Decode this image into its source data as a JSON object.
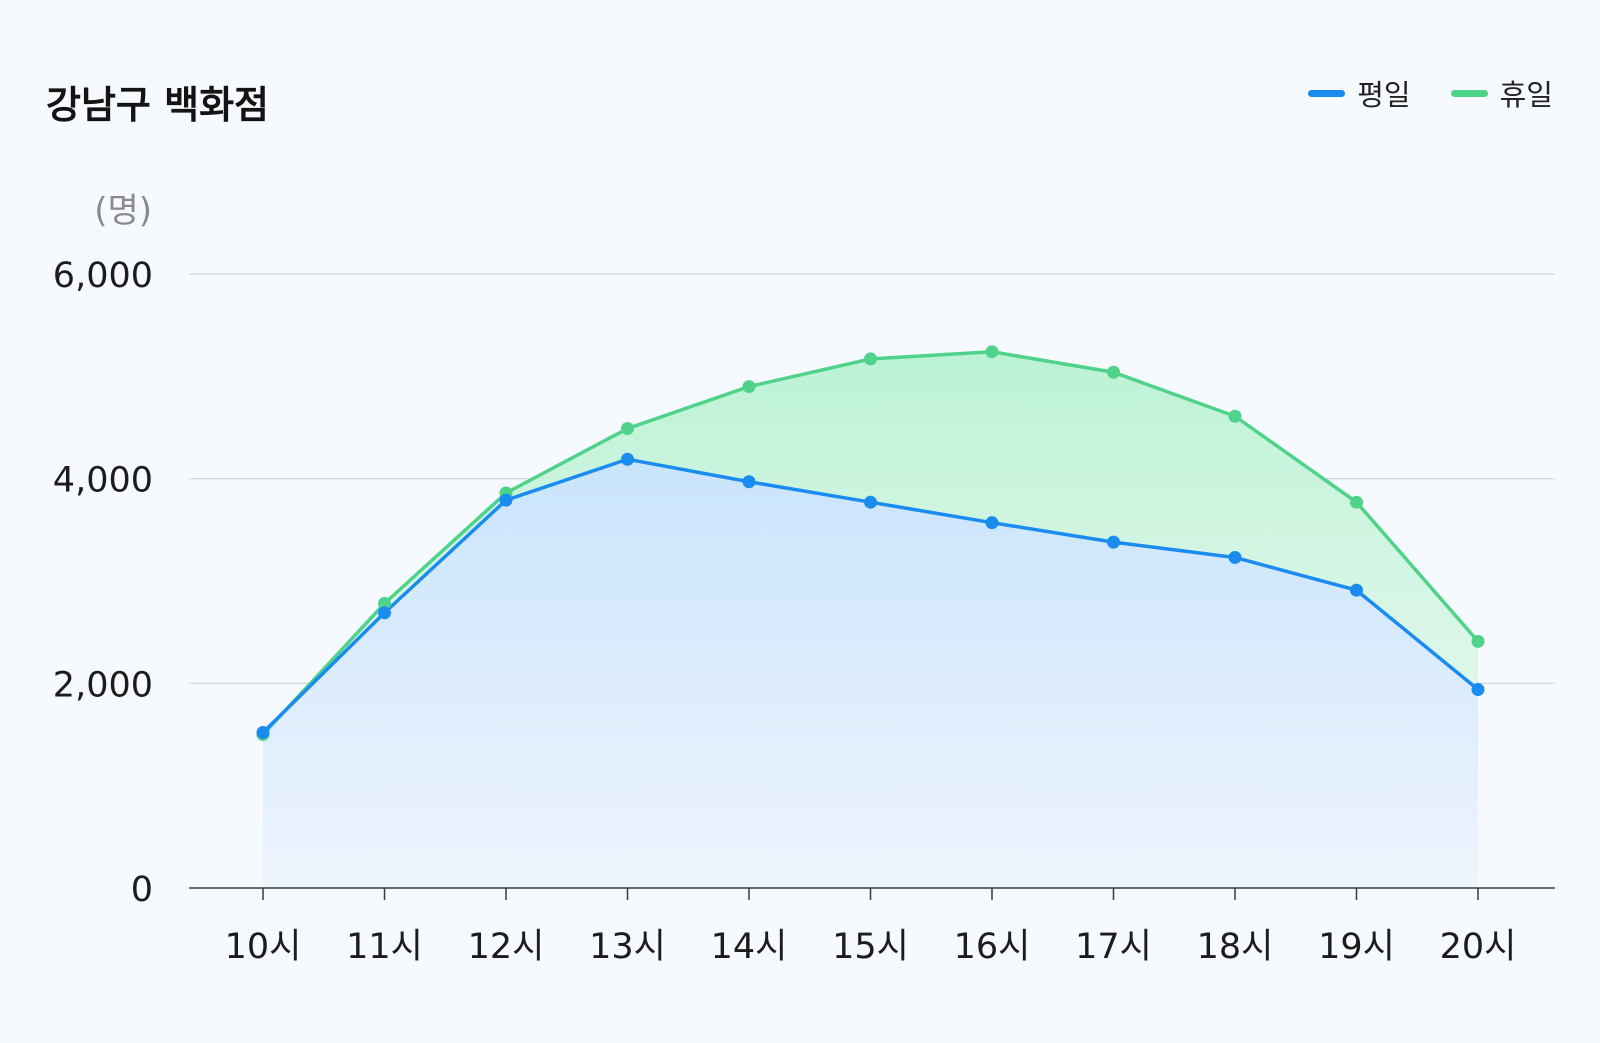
{
  "title": "강남구 백화점",
  "legend": [
    {
      "name": "평일",
      "color": "#1a8cf0"
    },
    {
      "name": "휴일",
      "color": "#4fd38a"
    }
  ],
  "chart_data": {
    "type": "area",
    "title": "강남구 백화점",
    "ylabel": "(명)",
    "xlabel": "",
    "categories": [
      "10시",
      "11시",
      "12시",
      "13시",
      "14시",
      "15시",
      "16시",
      "17시",
      "18시",
      "19시",
      "20시"
    ],
    "yticks": [
      "0",
      "2,000",
      "4,000",
      "6,000"
    ],
    "ylim": [
      0,
      6000
    ],
    "grid": true,
    "legend_position": "top-right",
    "series": [
      {
        "name": "휴일",
        "color": "#4fd38a",
        "values": [
          1500,
          2780,
          3860,
          4490,
          4900,
          5170,
          5240,
          5040,
          4610,
          3770,
          2410
        ]
      },
      {
        "name": "평일",
        "color": "#1a8cf0",
        "values": [
          1520,
          2690,
          3790,
          4190,
          3970,
          3770,
          3570,
          3380,
          3230,
          2910,
          1940
        ]
      }
    ]
  }
}
